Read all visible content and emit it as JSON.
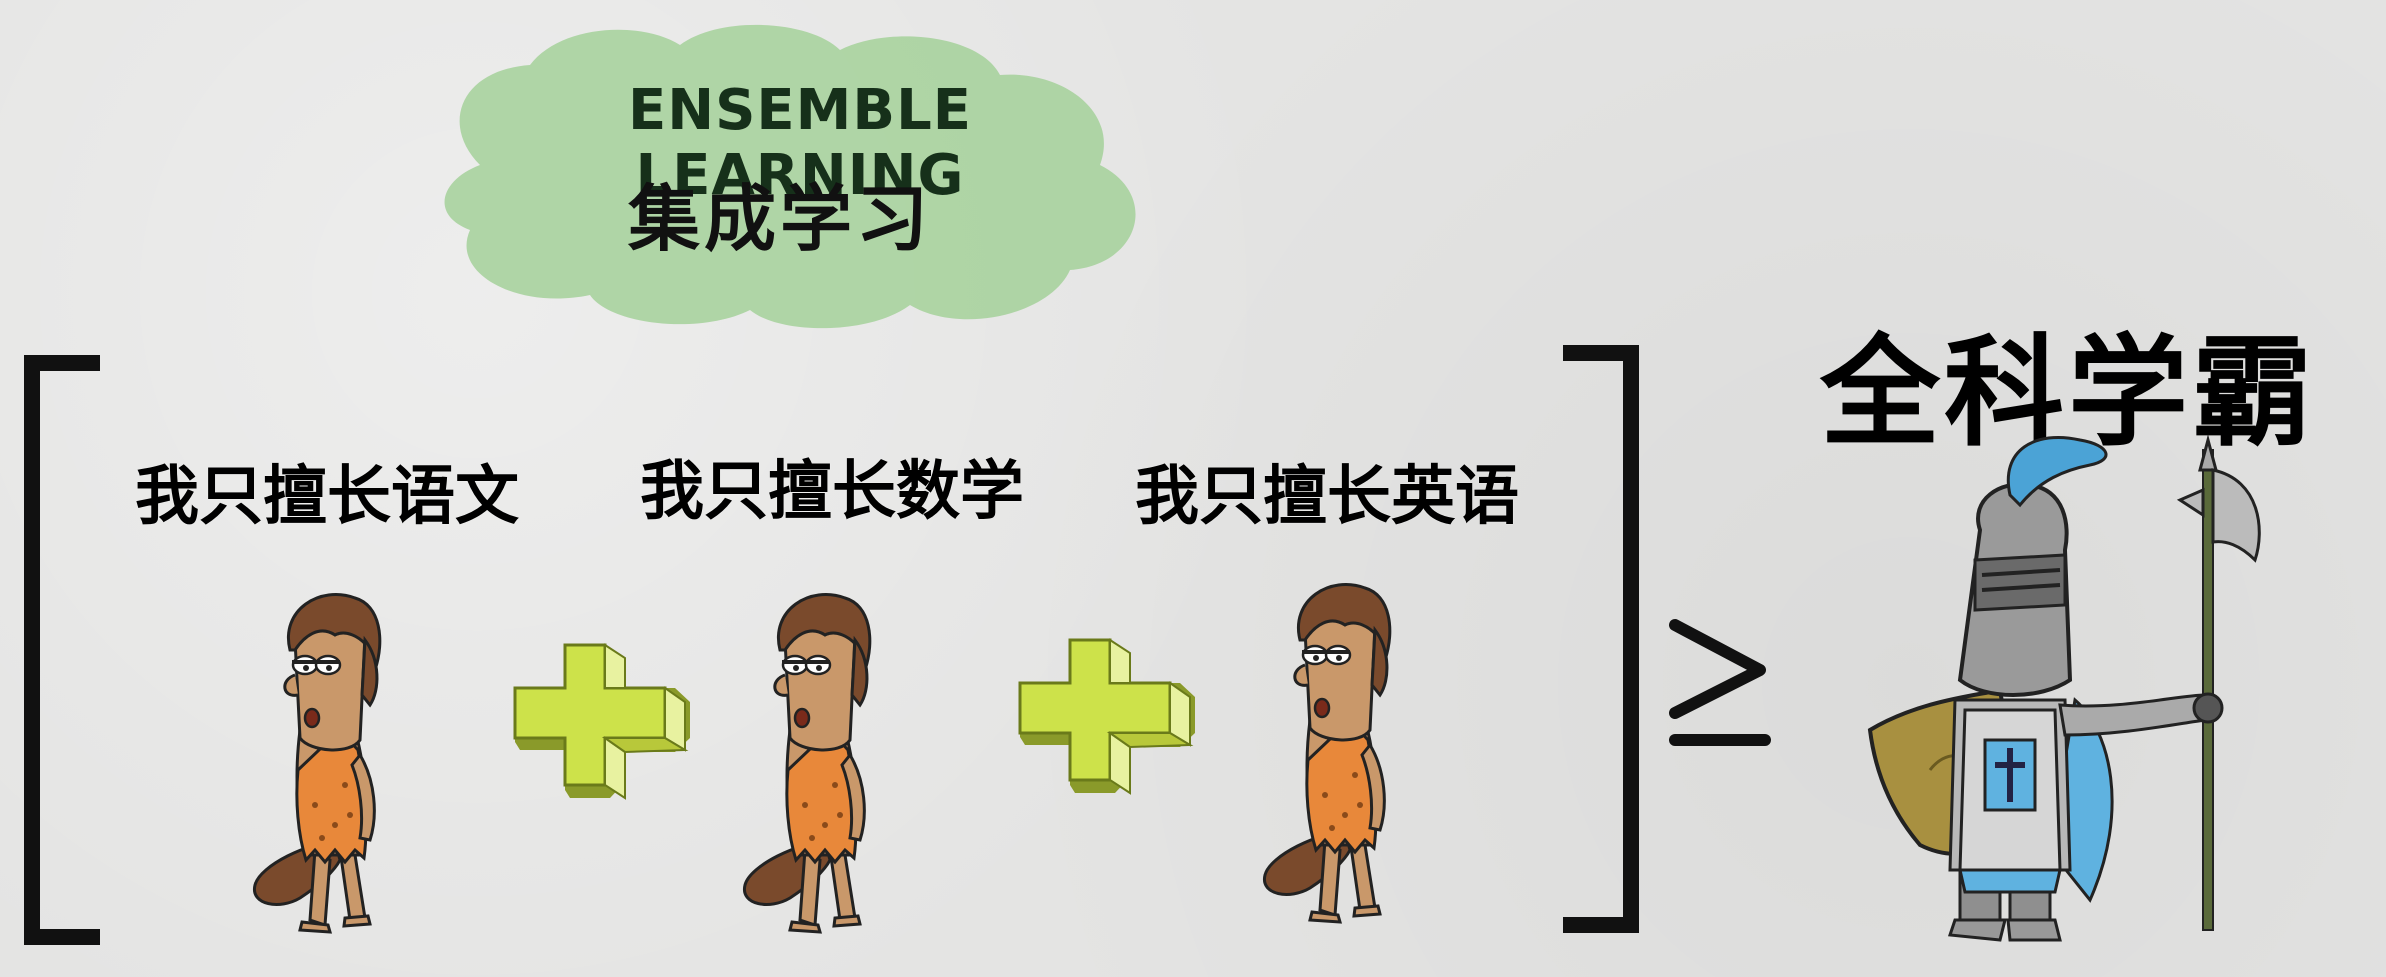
{
  "title": {
    "english": "ENSEMBLE LEARNING",
    "chinese": "集成学习"
  },
  "learners": [
    {
      "label": "我只擅长语文"
    },
    {
      "label": "我只擅长数学"
    },
    {
      "label": "我只擅长英语"
    }
  ],
  "operator": "≥",
  "result": {
    "label": "全科学霸"
  },
  "colors": {
    "cloud": "#a9d3a0",
    "plus": "#c8e04a",
    "bracket": "#111111",
    "knight_plume": "#4ba3d6",
    "knight_cape": "#5fb2e0"
  }
}
